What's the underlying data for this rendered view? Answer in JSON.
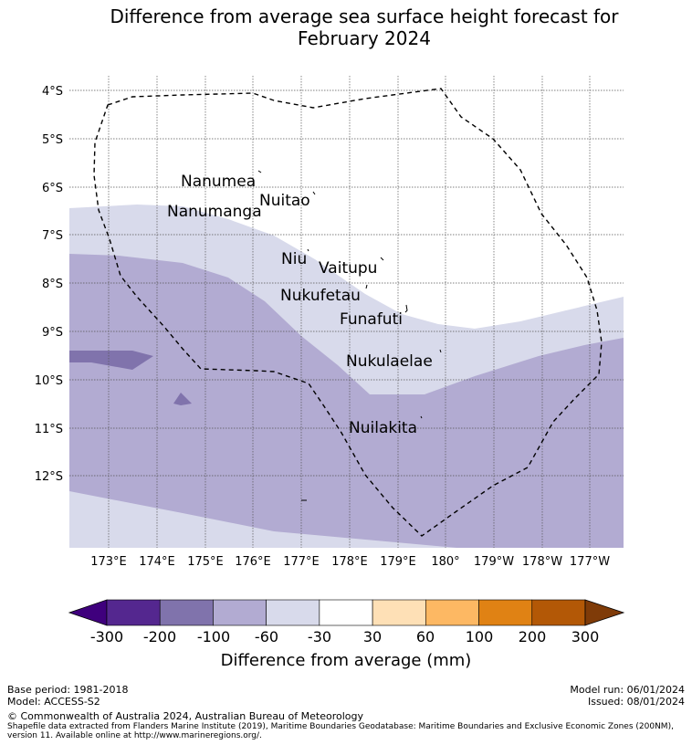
{
  "title_line1": "Difference from average sea surface height forecast for",
  "title_line2": "February 2024",
  "lat_labels": [
    "4°S",
    "5°S",
    "6°S",
    "7°S",
    "8°S",
    "9°S",
    "10°S",
    "11°S",
    "12°S"
  ],
  "lon_labels": [
    "173°E",
    "174°E",
    "175°E",
    "176°E",
    "177°E",
    "178°E",
    "179°E",
    "180°",
    "179°W",
    "178°W",
    "177°W"
  ],
  "places": [
    "Nanumea",
    "Nuitao",
    "Nanumanga",
    "Niu",
    "Vaitupu",
    "Nukufetau",
    "Funafuti",
    "Nukulaelae",
    "Nuilakita"
  ],
  "colorbar": {
    "ticks": [
      "-300",
      "-200",
      "-100",
      "-60",
      "-30",
      "30",
      "60",
      "100",
      "200",
      "300"
    ],
    "label": "Difference from average (mm)",
    "colors": [
      "#3f007d",
      "#54278f",
      "#8073ac",
      "#b2abd2",
      "#d8daeb",
      "#ffffff",
      "#fee0b6",
      "#fdb863",
      "#e08214",
      "#b35806",
      "#7f3b08"
    ]
  },
  "footer": {
    "base_period": "Base period: 1981-2018",
    "model": "Model: ACCESS-S2",
    "model_run": "Model run: 06/01/2024",
    "issued": "Issued: 08/01/2024",
    "copyright": "© Commonwealth of Australia 2024, Australian Bureau of Meteorology",
    "source_line1": "Shapefile data extracted from Flanders Marine Institute (2019), Maritime Boundaries Geodatabase: Maritime Boundaries and Exclusive Economic Zones (200NM),",
    "source_line2": "version 11. Available online at http://www.marineregions.org/."
  }
}
